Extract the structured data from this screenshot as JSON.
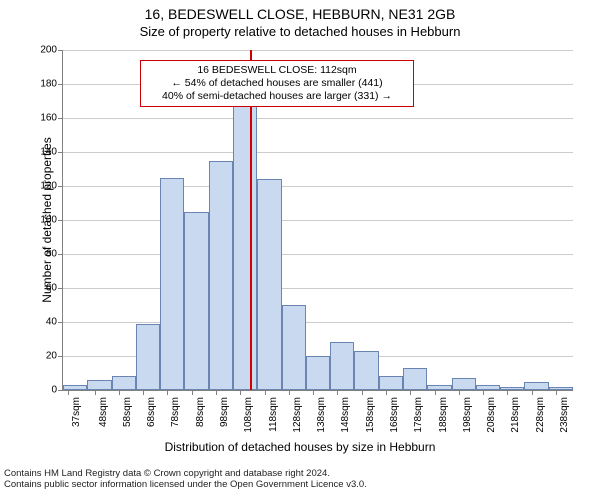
{
  "title": {
    "main": "16, BEDESWELL CLOSE, HEBBURN, NE31 2GB",
    "sub": "Size of property relative to detached houses in Hebburn"
  },
  "axis": {
    "ylabel": "Number of detached properties",
    "xlabel": "Distribution of detached houses by size in Hebburn"
  },
  "annotation": {
    "line1": "16 BEDESWELL CLOSE: 112sqm",
    "line2": "← 54% of detached houses are smaller (441)",
    "line3": "40% of semi-detached houses are larger (331) →"
  },
  "chart": {
    "type": "histogram",
    "ylim": [
      0,
      200
    ],
    "ytick_step": 20,
    "ytick_labels": [
      "0",
      "20",
      "40",
      "60",
      "80",
      "100",
      "120",
      "140",
      "160",
      "180",
      "200"
    ],
    "xtick_labels": [
      "37sqm",
      "48sqm",
      "58sqm",
      "68sqm",
      "78sqm",
      "88sqm",
      "98sqm",
      "108sqm",
      "118sqm",
      "128sqm",
      "138sqm",
      "148sqm",
      "158sqm",
      "168sqm",
      "178sqm",
      "188sqm",
      "198sqm",
      "208sqm",
      "218sqm",
      "228sqm",
      "238sqm"
    ],
    "xtick_positions": [
      37,
      48,
      58,
      68,
      78,
      88,
      98,
      108,
      118,
      128,
      138,
      148,
      158,
      168,
      178,
      188,
      198,
      208,
      218,
      228,
      238
    ],
    "x_domain": [
      35,
      245
    ],
    "marker_value": 112,
    "marker_color": "#d10000",
    "bar_fill": "#c9d9f0",
    "bar_stroke": "#6b85b3",
    "grid_color": "#cccccc",
    "background_color": "#ffffff",
    "bars": [
      {
        "x0": 35,
        "x1": 45,
        "y": 3
      },
      {
        "x0": 45,
        "x1": 55,
        "y": 6
      },
      {
        "x0": 55,
        "x1": 65,
        "y": 8
      },
      {
        "x0": 65,
        "x1": 75,
        "y": 39
      },
      {
        "x0": 75,
        "x1": 85,
        "y": 125
      },
      {
        "x0": 85,
        "x1": 95,
        "y": 105
      },
      {
        "x0": 95,
        "x1": 105,
        "y": 135
      },
      {
        "x0": 105,
        "x1": 115,
        "y": 168
      },
      {
        "x0": 115,
        "x1": 125,
        "y": 124
      },
      {
        "x0": 125,
        "x1": 135,
        "y": 50
      },
      {
        "x0": 135,
        "x1": 145,
        "y": 20
      },
      {
        "x0": 145,
        "x1": 155,
        "y": 28
      },
      {
        "x0": 155,
        "x1": 165,
        "y": 23
      },
      {
        "x0": 165,
        "x1": 175,
        "y": 8
      },
      {
        "x0": 175,
        "x1": 185,
        "y": 13
      },
      {
        "x0": 185,
        "x1": 195,
        "y": 3
      },
      {
        "x0": 195,
        "x1": 205,
        "y": 7
      },
      {
        "x0": 205,
        "x1": 215,
        "y": 3
      },
      {
        "x0": 215,
        "x1": 225,
        "y": 2
      },
      {
        "x0": 225,
        "x1": 235,
        "y": 5
      },
      {
        "x0": 235,
        "x1": 245,
        "y": 2
      }
    ],
    "title_fontsize_pt": 14,
    "sub_fontsize_pt": 13,
    "axis_label_fontsize_pt": 12,
    "tick_fontsize_pt": 10
  },
  "license": {
    "line1": "Contains HM Land Registry data © Crown copyright and database right 2024.",
    "line2": "Contains public sector information licensed under the Open Government Licence v3.0."
  }
}
